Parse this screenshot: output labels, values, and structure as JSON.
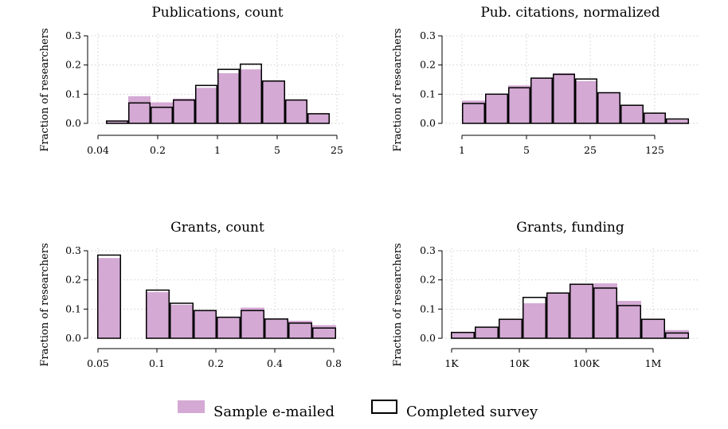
{
  "legend": {
    "sample_label": "Sample e-mailed",
    "survey_label": "Completed survey",
    "placement": "bottom-center"
  },
  "colors": {
    "sample_fill": "#d4a9d4",
    "outline": "#000000",
    "grid": "#cfcfcf"
  },
  "chart_data": [
    {
      "type": "bar",
      "title": "Publications, count",
      "ylabel": "Fraction of researchers",
      "xlabel": "",
      "x_scale": "log",
      "xlim": [
        0.04,
        25
      ],
      "ylim": [
        0,
        0.3
      ],
      "yticks": [
        0.3,
        0.2,
        0.1,
        0.0
      ],
      "ytick_labels": [
        "0.3",
        "0.2",
        "0.1",
        "0.0"
      ],
      "xtick_labels": [
        "0.04",
        "0.2",
        "1",
        "5",
        "25"
      ],
      "grid": true,
      "bins": [
        "b1",
        "b2",
        "b3",
        "b4",
        "b5",
        "b6",
        "b7",
        "b8",
        "b9",
        "b10"
      ],
      "series": [
        {
          "name": "Sample e-mailed",
          "values": [
            0.01,
            0.093,
            0.072,
            0.085,
            0.122,
            0.172,
            0.185,
            0.145,
            0.08,
            0.033
          ]
        },
        {
          "name": "Completed survey",
          "values": [
            0.008,
            0.07,
            0.055,
            0.08,
            0.13,
            0.185,
            0.203,
            0.145,
            0.08,
            0.033
          ]
        }
      ]
    },
    {
      "type": "bar",
      "title": "Pub. citations, normalized",
      "ylabel": "Fraction of researchers",
      "xlabel": "",
      "x_scale": "log",
      "xlim": [
        1,
        125
      ],
      "ylim": [
        0,
        0.3
      ],
      "yticks": [
        0.3,
        0.2,
        0.1,
        0.0
      ],
      "ytick_labels": [
        "0.3",
        "0.2",
        "0.1",
        "0.0"
      ],
      "xtick_labels": [
        "1",
        "5",
        "25",
        "125"
      ],
      "grid": true,
      "bins": [
        "b1",
        "b2",
        "b3",
        "b4",
        "b5",
        "b6",
        "b7",
        "b8",
        "b9",
        "b10"
      ],
      "series": [
        {
          "name": "Sample e-mailed",
          "values": [
            0.078,
            0.098,
            0.13,
            0.155,
            0.172,
            0.145,
            0.105,
            0.062,
            0.035,
            0.012
          ]
        },
        {
          "name": "Completed survey",
          "values": [
            0.068,
            0.1,
            0.122,
            0.155,
            0.168,
            0.152,
            0.105,
            0.062,
            0.035,
            0.015
          ]
        }
      ]
    },
    {
      "type": "bar",
      "title": "Grants, count",
      "ylabel": "Fraction of researchers",
      "xlabel": "",
      "x_scale": "log",
      "xlim": [
        0.05,
        0.8
      ],
      "ylim": [
        0,
        0.3
      ],
      "yticks": [
        0.3,
        0.2,
        0.1,
        0.0
      ],
      "ytick_labels": [
        "0.3",
        "0.2",
        "0.1",
        "0.0"
      ],
      "xtick_labels": [
        "0.05",
        "0.1",
        "0.2",
        "0.4",
        "0.8"
      ],
      "grid": true,
      "bins": [
        "b1",
        "b2",
        "b3",
        "b4",
        "b5",
        "b6",
        "b7",
        "b8",
        "b9"
      ],
      "series": [
        {
          "name": "Sample e-mailed",
          "values": [
            0.275,
            0.158,
            0.115,
            0.095,
            0.072,
            0.105,
            0.068,
            0.06,
            0.045
          ]
        },
        {
          "name": "Completed survey",
          "values": [
            0.285,
            0.165,
            0.12,
            0.095,
            0.072,
            0.095,
            0.066,
            0.052,
            0.035
          ]
        }
      ]
    },
    {
      "type": "bar",
      "title": "Grants, funding",
      "ylabel": "Fraction of researchers",
      "xlabel": "",
      "x_scale": "log",
      "xlim": [
        1000,
        1000000
      ],
      "ylim": [
        0,
        0.3
      ],
      "yticks": [
        0.3,
        0.2,
        0.1,
        0.0
      ],
      "ytick_labels": [
        "0.3",
        "0.2",
        "0.1",
        "0.0"
      ],
      "xtick_labels": [
        "1K",
        "10K",
        "100K",
        "1M"
      ],
      "grid": true,
      "bins": [
        "b1",
        "b2",
        "b3",
        "b4",
        "b5",
        "b6",
        "b7",
        "b8",
        "b9",
        "b10"
      ],
      "series": [
        {
          "name": "Sample e-mailed",
          "values": [
            0.02,
            0.038,
            0.065,
            0.12,
            0.155,
            0.185,
            0.188,
            0.128,
            0.065,
            0.028
          ]
        },
        {
          "name": "Completed survey",
          "values": [
            0.02,
            0.038,
            0.065,
            0.14,
            0.155,
            0.185,
            0.172,
            0.112,
            0.065,
            0.018
          ]
        }
      ]
    }
  ]
}
